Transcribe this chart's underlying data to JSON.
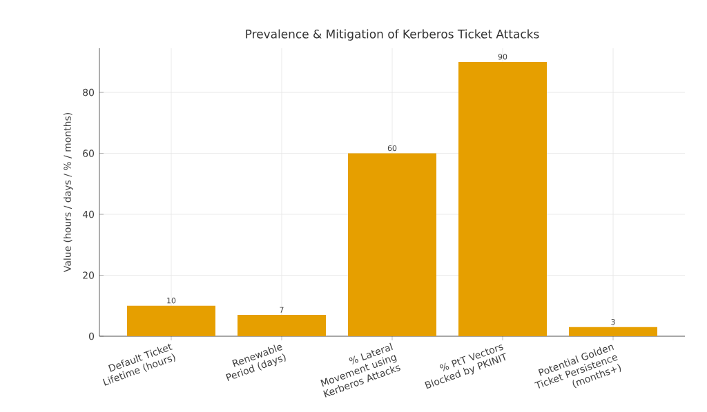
{
  "chart_data": {
    "type": "bar",
    "title": "Prevalence & Mitigation of Kerberos Ticket Attacks",
    "ylabel": "Value (hours / days / % / months)",
    "categories": [
      "Default Ticket Lifetime (hours)",
      "Renewable Period (days)",
      "% Lateral Movement using Kerberos Attacks",
      "% PtT Vectors Blocked by PKINIT",
      "Potential Golden Ticket Persistence (months+)"
    ],
    "values": [
      10,
      7,
      60,
      90,
      3
    ],
    "color": "#e69f00",
    "ylim": [
      0,
      94.5
    ],
    "yticks": [
      0,
      20,
      40,
      60,
      80
    ],
    "grid": true,
    "data_labels": true
  }
}
